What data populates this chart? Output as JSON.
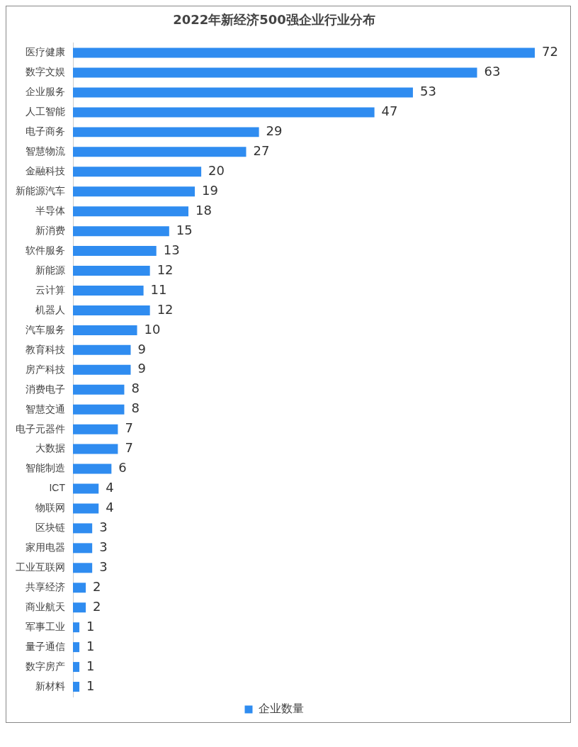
{
  "chart_data": {
    "type": "bar",
    "orientation": "horizontal",
    "title": "2022年新经济500强企业行业分布",
    "categories": [
      "医疗健康",
      "数字文娱",
      "企业服务",
      "人工智能",
      "电子商务",
      "智慧物流",
      "金融科技",
      "新能源汽车",
      "半导体",
      "新消费",
      "软件服务",
      "新能源",
      "云计算",
      "机器人",
      "汽车服务",
      "教育科技",
      "房产科技",
      "消费电子",
      "智慧交通",
      "电子元器件",
      "大数据",
      "智能制造",
      "ICT",
      "物联网",
      "区块链",
      "家用电器",
      "工业互联网",
      "共享经济",
      "商业航天",
      "军事工业",
      "量子通信",
      "数字房产",
      "新材料"
    ],
    "series": [
      {
        "name": "企业数量",
        "color": "#2f8cf0",
        "values": [
          72,
          63,
          53,
          47,
          29,
          27,
          20,
          19,
          18,
          15,
          13,
          12,
          11,
          12,
          10,
          9,
          9,
          8,
          8,
          7,
          7,
          6,
          4,
          4,
          3,
          3,
          3,
          2,
          2,
          1,
          1,
          1,
          1
        ]
      }
    ],
    "data_labels": true,
    "legend": "bottom"
  }
}
